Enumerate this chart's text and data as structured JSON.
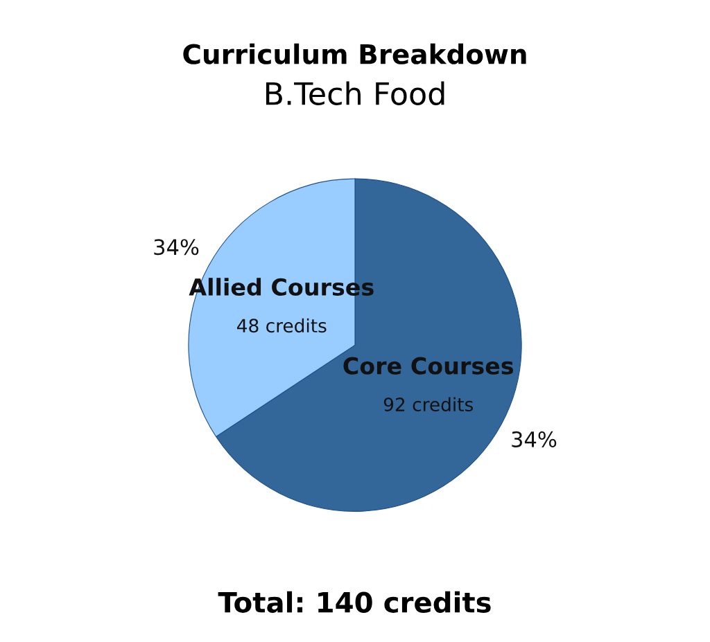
{
  "chart_data": {
    "type": "pie",
    "title": "Curriculum Breakdown",
    "subtitle": "B.Tech Food",
    "categories": [
      "Core Courses",
      "Allied Courses"
    ],
    "values": [
      92,
      48
    ],
    "colors": [
      "#336699",
      "#99ccff"
    ],
    "value_labels": [
      "92 credits",
      "48 credits"
    ],
    "annotations": [
      "34%",
      "34%",
      "Total: 140 credits"
    ]
  }
}
